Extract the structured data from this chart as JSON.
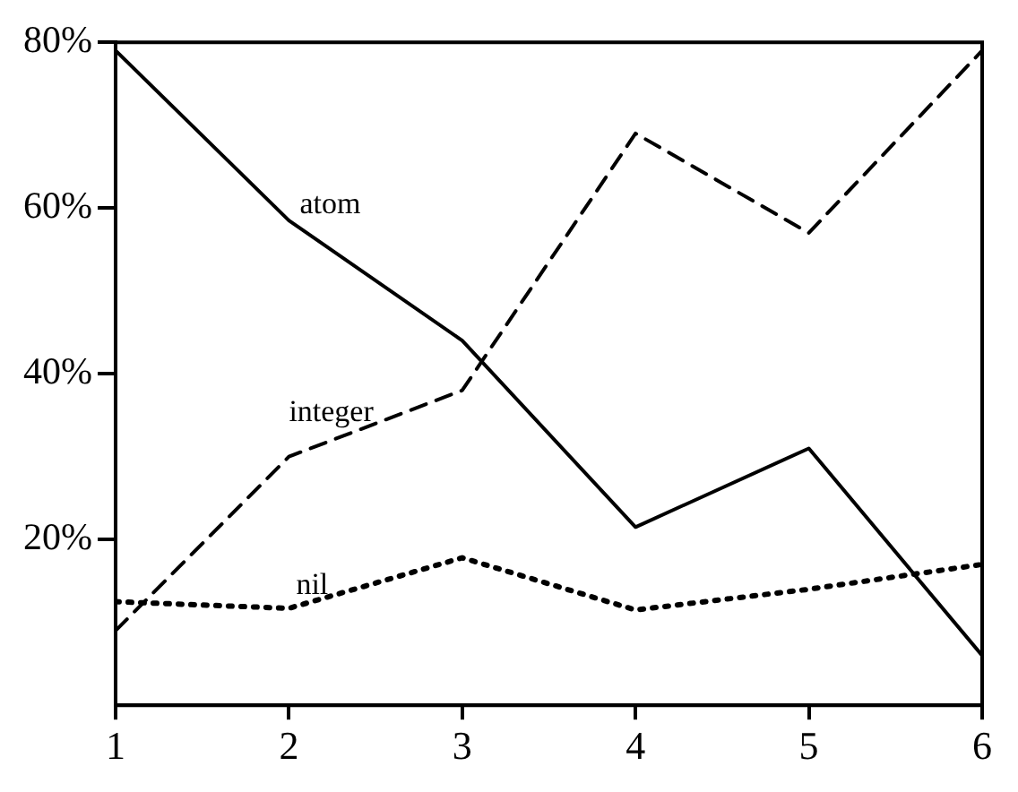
{
  "chart_data": {
    "type": "line",
    "x": [
      1,
      2,
      3,
      4,
      5,
      6
    ],
    "series": [
      {
        "name": "atom",
        "color": "#000000",
        "line_style": "solid",
        "values": [
          79,
          58.5,
          44,
          21.5,
          31,
          6
        ]
      },
      {
        "name": "integer",
        "color": "#000000",
        "line_style": "dashed",
        "values": [
          9,
          30,
          38,
          69,
          57,
          79
        ]
      },
      {
        "name": "nil",
        "color": "#000000",
        "line_style": "dotted",
        "values": [
          12.5,
          11.7,
          17.8,
          11.5,
          14,
          17
        ]
      }
    ],
    "xlim": [
      1,
      6
    ],
    "xticks": [
      1,
      2,
      3,
      4,
      5,
      6
    ],
    "ylim": [
      0,
      80
    ],
    "yticks": [
      {
        "value": 20,
        "label": "20%"
      },
      {
        "value": 40,
        "label": "40%"
      },
      {
        "value": 60,
        "label": "60%"
      },
      {
        "value": 80,
        "label": "80%"
      }
    ],
    "grid": false,
    "legend": false,
    "marker": "none"
  }
}
